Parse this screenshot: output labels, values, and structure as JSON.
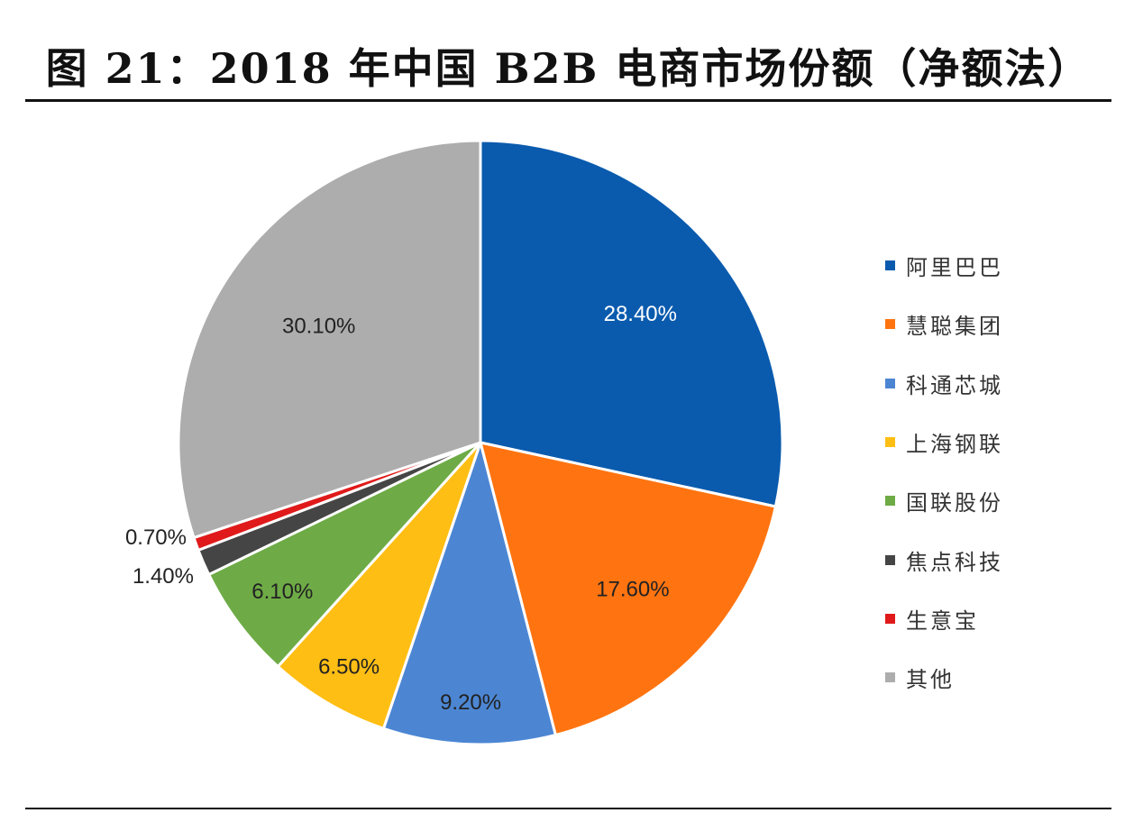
{
  "figure": {
    "title": "图 21：2018 年中国 B2B 电商市场份额（净额法）"
  },
  "chart_data": {
    "type": "pie",
    "title": "图 21：2018 年中国 B2B 电商市场份额（净额法）",
    "slices": [
      {
        "label": "阿里巴巴",
        "value": 28.4,
        "display": "28.40%",
        "color": "#0A5BAE"
      },
      {
        "label": "慧聪集团",
        "value": 17.6,
        "display": "17.60%",
        "color": "#FF7410"
      },
      {
        "label": "科通芯城",
        "value": 9.2,
        "display": "9.20%",
        "color": "#4C86D3"
      },
      {
        "label": "上海钢联",
        "value": 6.5,
        "display": "6.50%",
        "color": "#FFBE14"
      },
      {
        "label": "国联股份",
        "value": 6.1,
        "display": "6.10%",
        "color": "#6EAB46"
      },
      {
        "label": "焦点科技",
        "value": 1.4,
        "display": "1.40%",
        "color": "#454545"
      },
      {
        "label": "生意宝",
        "value": 0.7,
        "display": "0.70%",
        "color": "#E01A1A"
      },
      {
        "label": "其他",
        "value": 30.1,
        "display": "30.10%",
        "color": "#ADADAD"
      }
    ],
    "start_angle": "12 o'clock",
    "direction": "clockwise",
    "legend_position": "right"
  }
}
